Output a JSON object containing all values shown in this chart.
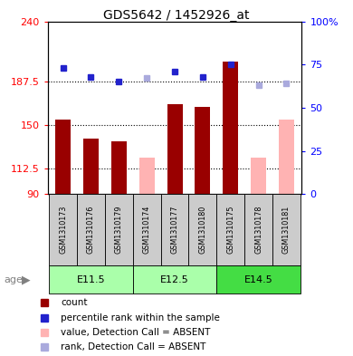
{
  "title": "GDS5642 / 1452926_at",
  "samples": [
    "GSM1310173",
    "GSM1310176",
    "GSM1310179",
    "GSM1310174",
    "GSM1310177",
    "GSM1310180",
    "GSM1310175",
    "GSM1310178",
    "GSM1310181"
  ],
  "age_groups": [
    {
      "label": "E11.5",
      "start": 0,
      "end": 3,
      "color": "#aaffaa"
    },
    {
      "label": "E12.5",
      "start": 3,
      "end": 6,
      "color": "#aaffaa"
    },
    {
      "label": "E14.5",
      "start": 6,
      "end": 9,
      "color": "#44dd44"
    }
  ],
  "count_values": [
    155,
    138,
    136,
    null,
    168,
    166,
    205,
    null,
    null
  ],
  "rank_values": [
    73,
    68,
    65,
    null,
    71,
    68,
    75,
    null,
    null
  ],
  "absent_value_bars": [
    null,
    null,
    null,
    122,
    null,
    null,
    null,
    122,
    155
  ],
  "absent_rank_dots": [
    null,
    null,
    null,
    67,
    null,
    null,
    null,
    63,
    64
  ],
  "ylim_left": [
    90,
    240
  ],
  "ylim_right": [
    0,
    100
  ],
  "yticks_left": [
    90,
    112.5,
    150,
    187.5,
    240
  ],
  "yticks_left_labels": [
    "90",
    "112.5",
    "150",
    "187.5",
    "240"
  ],
  "yticks_right": [
    0,
    25,
    50,
    75,
    100
  ],
  "yticks_right_labels": [
    "0",
    "25",
    "50",
    "75",
    "100%"
  ],
  "bar_width": 0.55,
  "count_color": "#990000",
  "absent_value_color": "#ffb3b3",
  "rank_color": "#2222cc",
  "absent_rank_color": "#aaaadd",
  "sample_bg": "#cccccc",
  "legend_items": [
    {
      "label": "count",
      "color": "#990000"
    },
    {
      "label": "percentile rank within the sample",
      "color": "#2222cc"
    },
    {
      "label": "value, Detection Call = ABSENT",
      "color": "#ffb3b3"
    },
    {
      "label": "rank, Detection Call = ABSENT",
      "color": "#aaaadd"
    }
  ]
}
